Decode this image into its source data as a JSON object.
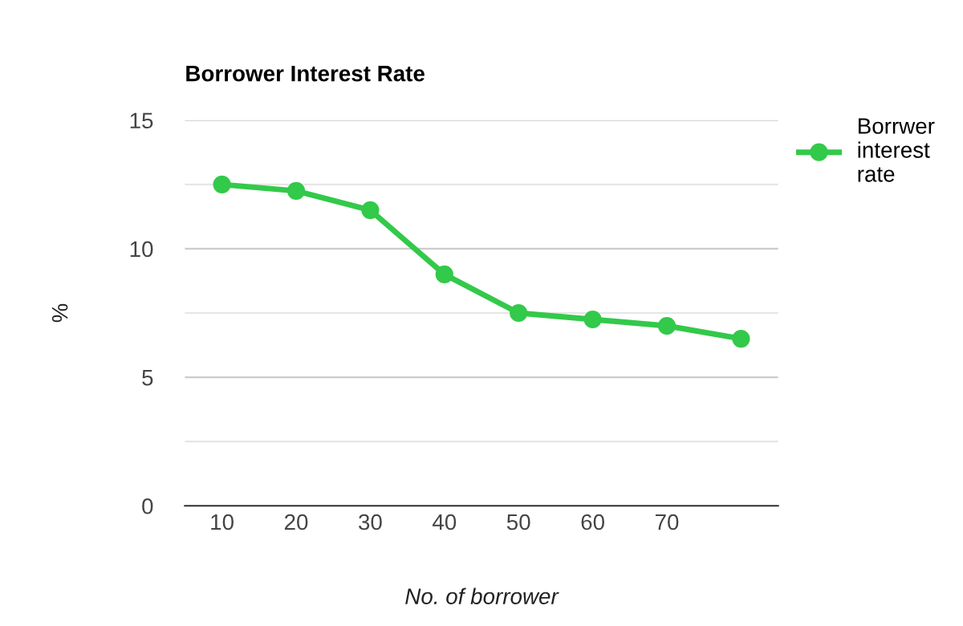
{
  "chart_data": {
    "type": "line",
    "title": "Borrower Interest Rate",
    "xlabel": "No. of borrower",
    "ylabel": "%",
    "categories": [
      "10",
      "20",
      "30",
      "40",
      "50",
      "60",
      "70",
      null
    ],
    "series": [
      {
        "name": "Borrwer interest rate",
        "color": "#33c94a",
        "values": [
          12.5,
          12.25,
          11.5,
          9,
          7.5,
          7.25,
          7,
          6.5
        ]
      }
    ],
    "ylim": [
      0,
      15
    ],
    "yticks": [
      0,
      {
        "value": 2.5,
        "label": null
      },
      5,
      {
        "value": 7.5,
        "label": null
      },
      10,
      {
        "value": 12.5,
        "label": null
      },
      15
    ],
    "grid": "y",
    "legend": "right",
    "marker": "circle",
    "line_style": "solid"
  }
}
